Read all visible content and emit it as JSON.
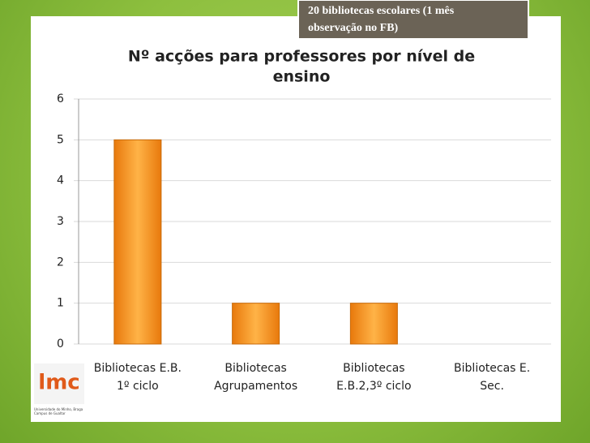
{
  "note": [
    "20 bibliotecas escolares (1 mês",
    "observação no FB)"
  ],
  "logo": {
    "mark": "lmc",
    "caption": [
      "Universidade do Minho, Braga",
      "Campus de Gualtar"
    ]
  },
  "chart_data": {
    "type": "bar",
    "title": [
      "Nº acções para professores por nível de",
      "ensino"
    ],
    "categories": [
      [
        "Bibliotecas E.B.",
        "1º ciclo"
      ],
      [
        "Bibliotecas",
        "Agrupamentos"
      ],
      [
        "Bibliotecas",
        "E.B.2,3º ciclo"
      ],
      [
        "Bibliotecas E.",
        "Sec."
      ]
    ],
    "values": [
      5,
      1,
      1,
      0
    ],
    "color": "#f7941d",
    "ylim": [
      0,
      6
    ],
    "yticks": [
      0,
      1,
      2,
      3,
      4,
      5,
      6
    ],
    "grid": true
  }
}
